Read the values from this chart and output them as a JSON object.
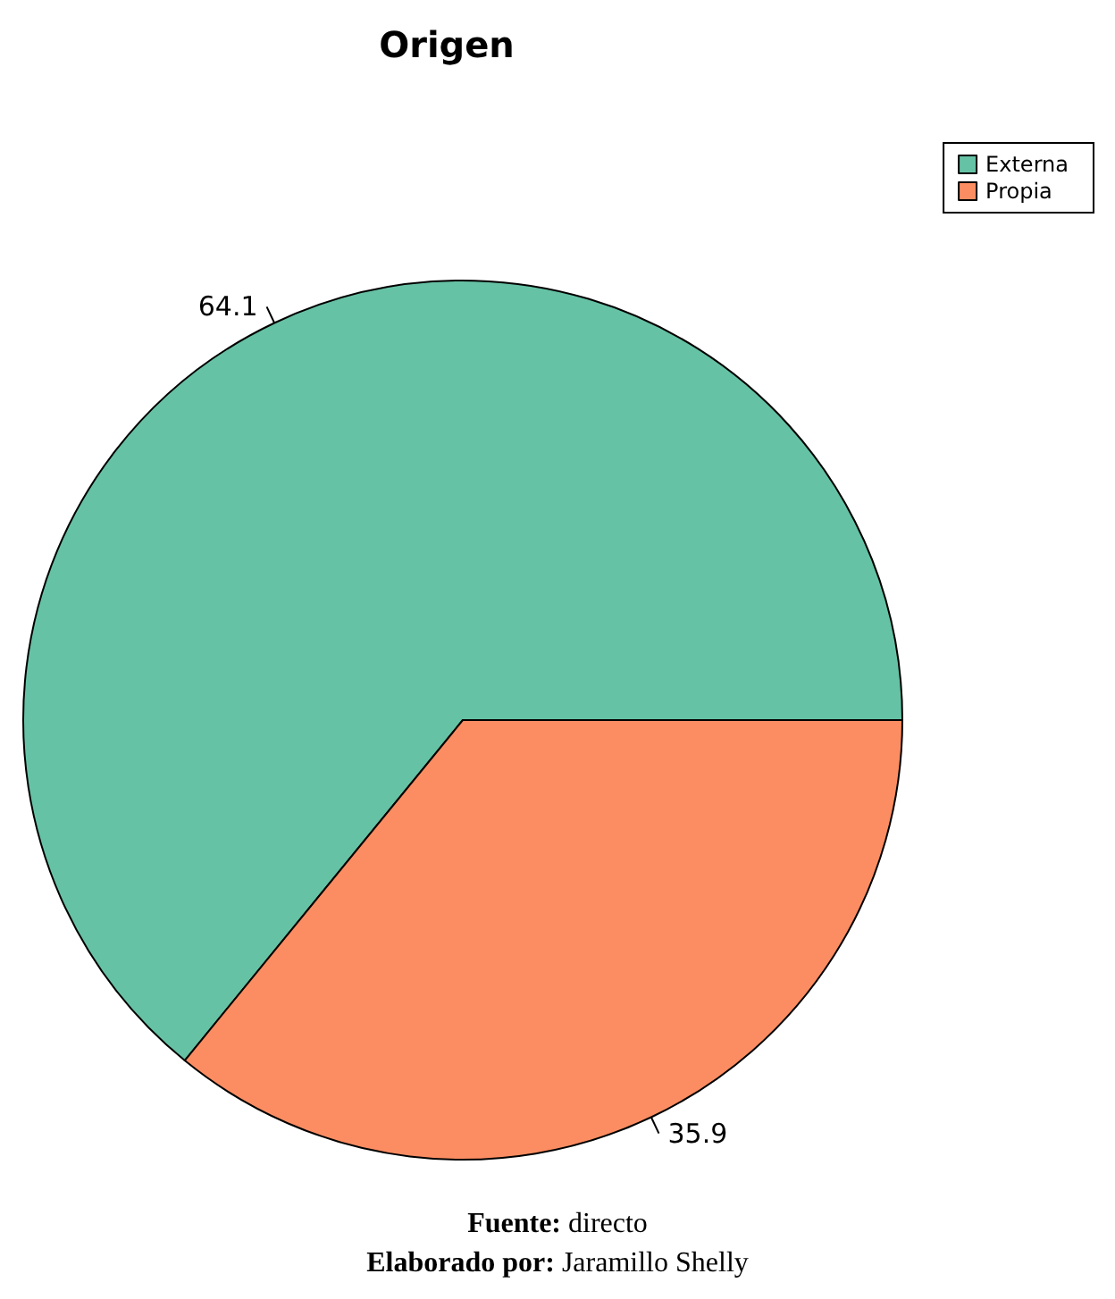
{
  "chart_data": {
    "type": "pie",
    "title": "Origen",
    "categories": [
      "Externa",
      "Propia"
    ],
    "values": [
      64.1,
      35.9
    ],
    "colors": [
      "#66c2a5",
      "#fc8d62"
    ],
    "data_labels": true,
    "legend": "top right",
    "annotations": [
      "Fuente: directo",
      "Elaborado por: Jaramillo Shelly"
    ]
  }
}
